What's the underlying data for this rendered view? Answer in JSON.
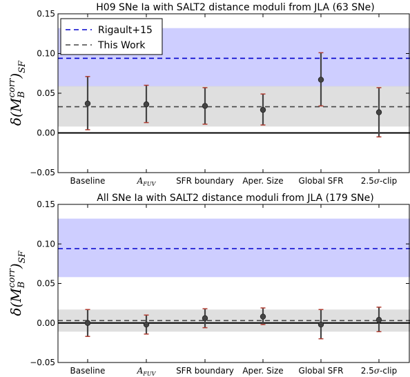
{
  "chart_data": [
    {
      "type": "errorbar",
      "title": "H09 SNe Ia with SALT2 distance moduli from JLA (63 SNe)",
      "ylabel": "δ(M_B^corr)_SF",
      "ylim": [
        -0.05,
        0.15
      ],
      "yticks": [
        "0.15",
        "0.10",
        "0.05",
        "0.00",
        "−0.05"
      ],
      "yticks_values": [
        0.15,
        0.1,
        0.05,
        0.0,
        -0.05
      ],
      "categories": [
        "Baseline",
        "A_FUV",
        "SFR boundary",
        "Aper. Size",
        "Global SFR",
        "2.5σ-clip"
      ],
      "values": [
        0.037,
        0.036,
        0.034,
        0.029,
        0.067,
        0.026
      ],
      "err_low": [
        0.033,
        0.023,
        0.023,
        0.019,
        0.033,
        0.031
      ],
      "err_high": [
        0.034,
        0.024,
        0.023,
        0.02,
        0.034,
        0.031
      ],
      "reference_lines": [
        {
          "name": "Rigault+15",
          "value": 0.094,
          "band": [
            0.058,
            0.132
          ],
          "color": "#0000cc",
          "band_color": "#c6c6ff"
        },
        {
          "name": "This Work",
          "value": 0.033,
          "band": [
            0.008,
            0.059
          ],
          "color": "#444444",
          "band_color": "#d9d9d9"
        }
      ],
      "zero_line": 0.0,
      "legend": {
        "position": "top-left",
        "entries": [
          "Rigault+15",
          "This Work"
        ]
      },
      "grid": false
    },
    {
      "type": "errorbar",
      "title": "All SNe Ia with SALT2 distance moduli from JLA (179 SNe)",
      "ylabel": "δ(M_B^corr)_SF",
      "ylim": [
        -0.05,
        0.15
      ],
      "yticks": [
        "0.15",
        "0.10",
        "0.05",
        "0.00",
        "−0.05"
      ],
      "yticks_values": [
        0.15,
        0.1,
        0.05,
        0.0,
        -0.05
      ],
      "categories": [
        "Baseline",
        "A_FUV",
        "SFR boundary",
        "Aper. Size",
        "Global SFR",
        "2.5σ-clip"
      ],
      "values": [
        0.0,
        -0.002,
        0.006,
        0.008,
        -0.002,
        0.004
      ],
      "err_low": [
        0.017,
        0.012,
        0.012,
        0.01,
        0.018,
        0.015
      ],
      "err_high": [
        0.017,
        0.012,
        0.012,
        0.011,
        0.019,
        0.016
      ],
      "reference_lines": [
        {
          "name": "Rigault+15",
          "value": 0.094,
          "band": [
            0.058,
            0.132
          ],
          "color": "#0000cc",
          "band_color": "#c6c6ff"
        },
        {
          "name": "This Work",
          "value": 0.003,
          "band": [
            -0.011,
            0.017
          ],
          "color": "#444444",
          "band_color": "#d9d9d9"
        }
      ],
      "zero_line": 0.0,
      "grid": false
    }
  ]
}
